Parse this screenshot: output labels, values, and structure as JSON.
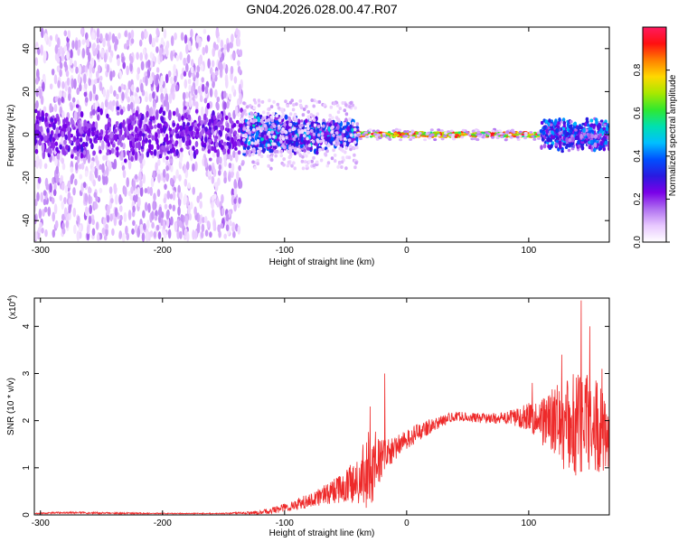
{
  "figure_title": "GN04.2026.028.00.47.R07",
  "chart_data": [
    {
      "type": "heatmap",
      "xlabel": "Height of straight line (km)",
      "ylabel": "Frequency (Hz)",
      "xlim": [
        -305,
        166
      ],
      "ylim": [
        -50,
        50
      ],
      "x_ticks": [
        -300,
        -200,
        -100,
        0,
        100
      ],
      "y_ticks": [
        -40,
        -20,
        0,
        20,
        40
      ],
      "colorbar": {
        "label": "Normalized spectral amplitude",
        "range": [
          0,
          1
        ],
        "ticks": [
          0.0,
          0.2,
          0.4,
          0.6,
          0.8
        ],
        "colormap": [
          "#ffffff",
          "#e8c8ff",
          "#b070f0",
          "#7a00e8",
          "#2a1ae0",
          "#0050ff",
          "#00bfff",
          "#00e0b0",
          "#30e830",
          "#a8e800",
          "#ffd800",
          "#ff8000",
          "#ff1010",
          "#ff1a60"
        ]
      },
      "regions": [
        {
          "x": [
            -305,
            -135
          ],
          "freq_spread": 48,
          "amplitude": [
            0.05,
            0.25
          ],
          "density": "high"
        },
        {
          "x": [
            -135,
            -40
          ],
          "freq_spread": 15,
          "amplitude": [
            0.2,
            0.45
          ],
          "density": "medium"
        },
        {
          "x": [
            -40,
            110
          ],
          "freq_spread": 2,
          "amplitude": [
            0.8,
            1.0
          ],
          "density": "line"
        },
        {
          "x": [
            110,
            166
          ],
          "freq_spread": 8,
          "amplitude": [
            0.3,
            0.5
          ],
          "density": "medium"
        }
      ]
    },
    {
      "type": "line",
      "xlabel": "Height of straight line (km)",
      "ylabel": "SNR (10 * v/v)",
      "scale_label": "(x10",
      "scale_exponent": "4",
      "xlim": [
        -305,
        166
      ],
      "ylim": [
        0,
        4.6
      ],
      "x_ticks": [
        -300,
        -200,
        -100,
        0,
        100
      ],
      "y_ticks": [
        0,
        1,
        2,
        3,
        4
      ],
      "color": "#ee2a2a",
      "series": [
        {
          "x": [
            -305,
            -280,
            -250,
            -200,
            -150,
            -120,
            -100,
            -80,
            -60,
            -40,
            -30,
            -20,
            -10,
            0,
            10,
            20,
            30,
            40,
            60,
            80,
            100,
            110,
            120,
            130,
            140,
            150,
            160,
            166
          ],
          "y": [
            0.03,
            0.05,
            0.04,
            0.03,
            0.03,
            0.05,
            0.15,
            0.3,
            0.5,
            0.7,
            1.0,
            1.2,
            1.4,
            1.6,
            1.75,
            1.9,
            2.0,
            2.1,
            2.05,
            2.05,
            2.1,
            2.0,
            2.0,
            1.9,
            1.9,
            2.0,
            1.8,
            1.7
          ],
          "noise": [
            0.01,
            0.02,
            0.02,
            0.01,
            0.01,
            0.04,
            0.1,
            0.15,
            0.25,
            0.5,
            0.9,
            0.4,
            0.25,
            0.2,
            0.2,
            0.15,
            0.12,
            0.1,
            0.1,
            0.12,
            0.3,
            0.5,
            0.7,
            1.0,
            1.2,
            1.1,
            0.9,
            0.8
          ],
          "spikes": [
            {
              "x": -18,
              "y": 3.0
            },
            {
              "x": -30,
              "y": 2.3
            },
            {
              "x": 103,
              "y": 2.8
            },
            {
              "x": 127,
              "y": 3.4
            },
            {
              "x": 143,
              "y": 4.55
            },
            {
              "x": 150,
              "y": 4.0
            },
            {
              "x": 160,
              "y": 3.1
            }
          ]
        }
      ]
    }
  ]
}
